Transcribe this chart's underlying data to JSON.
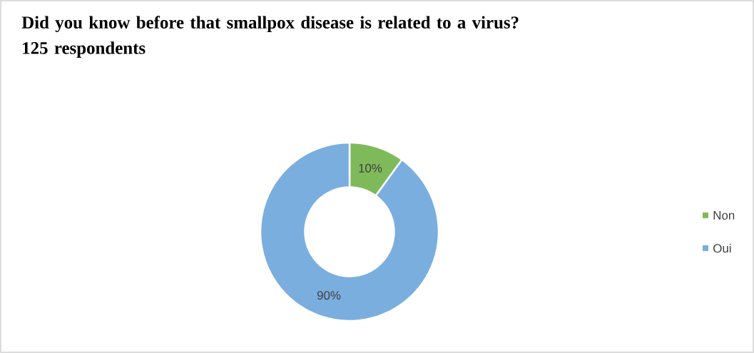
{
  "chart_data": {
    "type": "donut",
    "title": "Did you know before that smallpox disease is related to a virus?",
    "subtitle": "125 respondents",
    "categories": [
      "Non",
      "Oui"
    ],
    "values": [
      10,
      90
    ],
    "colors": [
      "#7fba5a",
      "#7aaedf"
    ],
    "value_labels": [
      "10%",
      "90%"
    ],
    "legend": "right"
  }
}
